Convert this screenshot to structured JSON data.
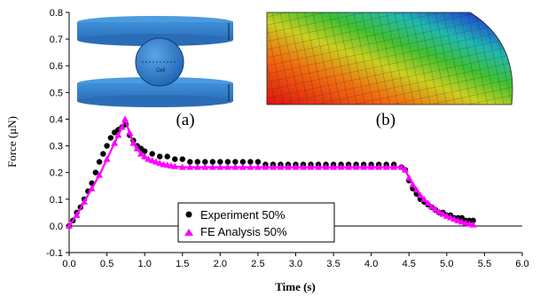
{
  "chart_data": {
    "type": "scatter",
    "xlabel": "Time (s)",
    "ylabel": "Force (μN)",
    "xlim": [
      0.0,
      6.0
    ],
    "ylim": [
      -0.1,
      0.8
    ],
    "x_ticks": [
      "0.0",
      "0.5",
      "1.0",
      "1.5",
      "2.0",
      "2.5",
      "3.0",
      "3.5",
      "4.0",
      "4.5",
      "5.0",
      "5.5",
      "6.0"
    ],
    "y_ticks": [
      "-0.1",
      "0.0",
      "0.1",
      "0.2",
      "0.3",
      "0.4",
      "0.5",
      "0.6",
      "0.7",
      "0.8"
    ],
    "grid": false,
    "legend_position": "bottom-center",
    "colors": {
      "experiment": "#000000",
      "fe_analysis": "#ff00ff"
    },
    "inset_labels": [
      "(a)",
      "(b)"
    ],
    "inset_a_cell_label": "Cell",
    "series": [
      {
        "name": "Experiment 50%",
        "marker": "circle",
        "x": [
          0.0,
          0.05,
          0.1,
          0.15,
          0.2,
          0.25,
          0.3,
          0.35,
          0.4,
          0.45,
          0.5,
          0.55,
          0.6,
          0.65,
          0.7,
          0.75,
          0.8,
          0.85,
          0.9,
          0.95,
          1.0,
          1.1,
          1.2,
          1.3,
          1.4,
          1.5,
          1.6,
          1.7,
          1.8,
          1.9,
          2.0,
          2.1,
          2.2,
          2.3,
          2.4,
          2.5,
          2.6,
          2.7,
          2.8,
          2.9,
          3.0,
          3.1,
          3.2,
          3.3,
          3.4,
          3.5,
          3.6,
          3.7,
          3.8,
          3.9,
          4.0,
          4.1,
          4.2,
          4.3,
          4.4,
          4.45,
          4.5,
          4.55,
          4.6,
          4.65,
          4.7,
          4.75,
          4.8,
          4.85,
          4.9,
          4.95,
          5.0,
          5.05,
          5.1,
          5.15,
          5.2,
          5.25,
          5.3,
          5.35
        ],
        "y": [
          0.0,
          0.02,
          0.05,
          0.07,
          0.1,
          0.13,
          0.16,
          0.2,
          0.24,
          0.27,
          0.3,
          0.33,
          0.35,
          0.36,
          0.37,
          0.38,
          0.34,
          0.32,
          0.3,
          0.29,
          0.28,
          0.27,
          0.26,
          0.26,
          0.25,
          0.25,
          0.24,
          0.24,
          0.24,
          0.24,
          0.24,
          0.24,
          0.24,
          0.24,
          0.24,
          0.24,
          0.23,
          0.23,
          0.23,
          0.23,
          0.23,
          0.23,
          0.23,
          0.23,
          0.23,
          0.23,
          0.23,
          0.23,
          0.23,
          0.23,
          0.23,
          0.23,
          0.23,
          0.23,
          0.22,
          0.21,
          0.17,
          0.14,
          0.12,
          0.1,
          0.09,
          0.08,
          0.07,
          0.06,
          0.05,
          0.05,
          0.04,
          0.04,
          0.03,
          0.03,
          0.03,
          0.02,
          0.02,
          0.02
        ]
      },
      {
        "name": "FE Analysis  50%",
        "marker": "triangle",
        "x": [
          0.0,
          0.1,
          0.2,
          0.3,
          0.4,
          0.5,
          0.6,
          0.65,
          0.7,
          0.74,
          0.8,
          0.85,
          0.9,
          0.95,
          1.0,
          1.05,
          1.1,
          1.15,
          1.2,
          1.25,
          1.3,
          1.35,
          1.4,
          1.5,
          1.6,
          1.7,
          1.8,
          1.9,
          2.0,
          2.1,
          2.2,
          2.3,
          2.4,
          2.5,
          2.6,
          2.7,
          2.8,
          2.9,
          3.0,
          3.1,
          3.2,
          3.3,
          3.4,
          3.5,
          3.6,
          3.7,
          3.8,
          3.9,
          4.0,
          4.1,
          4.2,
          4.3,
          4.4,
          4.45,
          4.5,
          4.55,
          4.6,
          4.65,
          4.7,
          4.75,
          4.8,
          4.85,
          4.9,
          4.95,
          5.0,
          5.05,
          5.1,
          5.15,
          5.2,
          5.25,
          5.3,
          5.35
        ],
        "y": [
          0.0,
          0.04,
          0.09,
          0.14,
          0.19,
          0.25,
          0.31,
          0.34,
          0.37,
          0.4,
          0.35,
          0.31,
          0.29,
          0.27,
          0.26,
          0.25,
          0.245,
          0.24,
          0.235,
          0.23,
          0.228,
          0.225,
          0.223,
          0.22,
          0.22,
          0.22,
          0.22,
          0.22,
          0.22,
          0.22,
          0.22,
          0.22,
          0.22,
          0.22,
          0.22,
          0.22,
          0.22,
          0.22,
          0.22,
          0.22,
          0.22,
          0.22,
          0.22,
          0.22,
          0.22,
          0.22,
          0.22,
          0.22,
          0.22,
          0.22,
          0.22,
          0.22,
          0.22,
          0.21,
          0.18,
          0.155,
          0.135,
          0.115,
          0.1,
          0.085,
          0.072,
          0.062,
          0.052,
          0.044,
          0.037,
          0.031,
          0.025,
          0.02,
          0.015,
          0.011,
          0.007,
          0.004
        ]
      }
    ]
  }
}
